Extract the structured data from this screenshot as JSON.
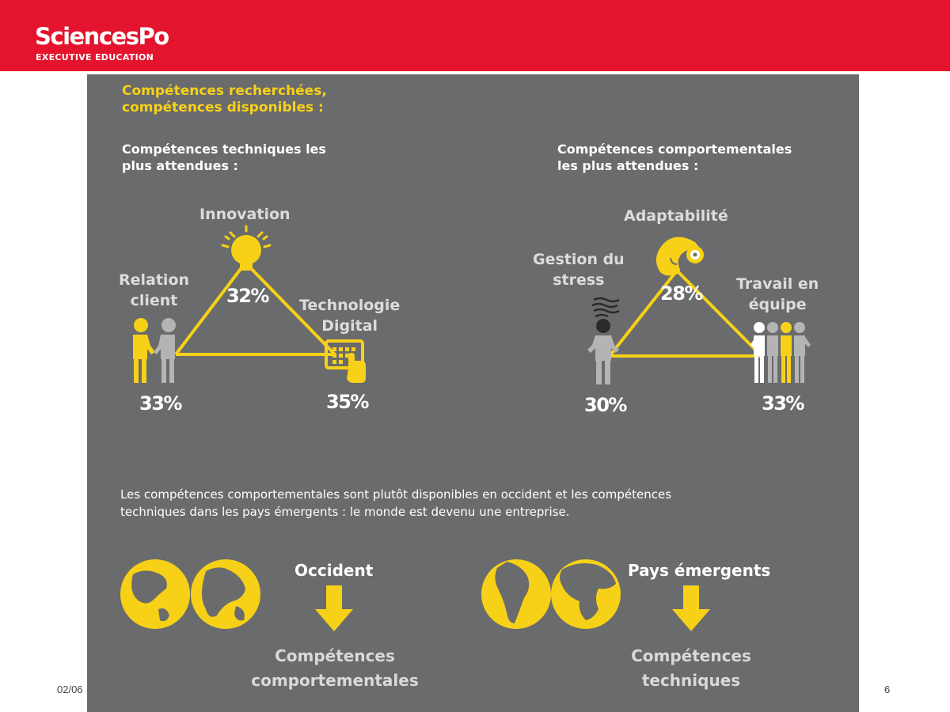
{
  "header": {
    "logo_main": "SciencesPo",
    "logo_sub": "EXECUTIVE EDUCATION"
  },
  "infographic": {
    "title_line1": "Compétences recherchées,",
    "title_line2": "compétences disponibles :",
    "technical": {
      "heading_line1": "Compétences techniques les",
      "heading_line2": "plus attendues :",
      "innovation": {
        "label": "Innovation",
        "value": "32%"
      },
      "relation": {
        "label_line1": "Relation",
        "label_line2": "client",
        "value": "33%"
      },
      "technologie": {
        "label_line1": "Technologie",
        "label_line2": "Digital",
        "value": "35%"
      }
    },
    "behavioral": {
      "heading_line1": "Compétences comportementales",
      "heading_line2": "les plus attendues :",
      "adaptabilite": {
        "label": "Adaptabilité",
        "value": "28%"
      },
      "stress": {
        "label_line1": "Gestion du",
        "label_line2": "stress",
        "value": "30%"
      },
      "travail": {
        "label_line1": "Travail en",
        "label_line2": "équipe",
        "value": "33%"
      }
    },
    "summary_line1": "Les compétences comportementales sont plutôt disponibles en occident et les compétences",
    "summary_line2": "techniques dans les pays émergents : le monde est devenu une entreprise.",
    "occident": {
      "label": "Occident",
      "result_line1": "Compétences",
      "result_line2": "comportementales"
    },
    "emergents": {
      "label": "Pays émergents",
      "result_line1": "Compétences",
      "result_line2": "techniques"
    }
  },
  "footer": {
    "date": "02/06",
    "page": "6"
  },
  "colors": {
    "brand_red": "#e4142e",
    "accent_yellow": "#f7d117",
    "panel_grey": "#6a6b6d",
    "figure_grey": "#b4b4b4"
  },
  "icons": [
    "lightbulb-icon",
    "touchscreen-hand-icon",
    "people-icon",
    "chameleon-icon",
    "stressed-person-icon",
    "team-icon",
    "globe-icon",
    "arrow-down-icon"
  ]
}
